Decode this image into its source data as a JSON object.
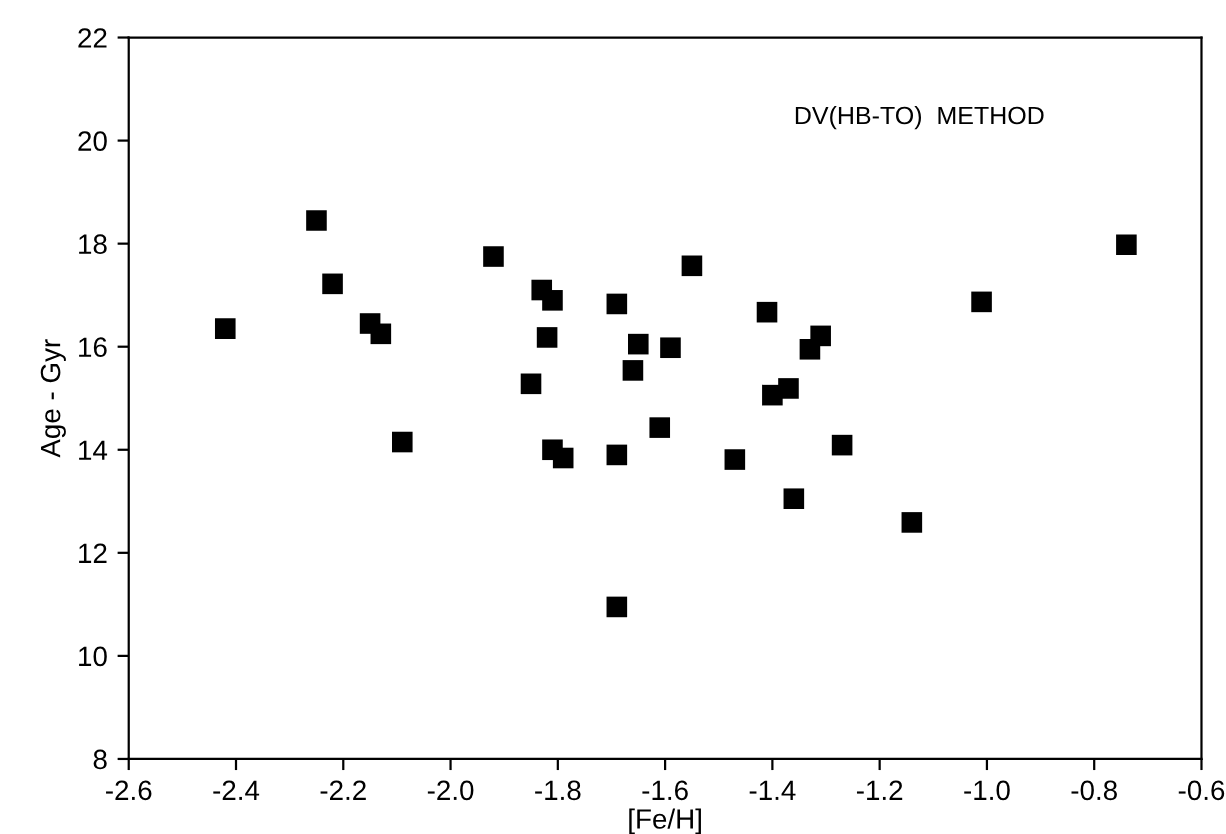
{
  "chart_data": {
    "type": "scatter",
    "xlabel": "[Fe/H]",
    "ylabel": "Age - Gyr",
    "annotations": [
      "DV(HB-TO)  METHOD"
    ],
    "x": [
      -2.42,
      -2.15,
      -2.13,
      -2.09,
      -1.85,
      -1.82,
      -1.81,
      -1.79,
      -1.69,
      -1.69,
      -1.66,
      -1.65,
      -1.59,
      -1.61,
      -1.47,
      -1.4,
      -1.37,
      -1.36,
      -1.33,
      -1.31,
      -1.27,
      -1.14,
      -2.25,
      -2.22,
      -1.92,
      -1.83,
      -1.81,
      -1.69,
      -1.55,
      -1.41,
      -1.01,
      -0.74
    ],
    "series": [
      {
        "color": "#000000",
        "values": [
          16.35,
          16.45,
          16.25,
          14.15,
          15.28,
          16.18,
          14.0,
          13.84,
          13.9,
          10.95,
          15.54,
          16.05,
          15.98,
          14.43,
          13.81,
          15.06,
          15.19,
          13.05,
          15.95,
          16.21,
          14.09,
          12.59,
          18.45,
          17.22,
          17.75,
          17.1,
          16.9,
          16.83,
          17.57,
          16.67,
          16.87,
          17.98
        ]
      }
    ],
    "marker": "square",
    "grid": false,
    "xlim": [
      -2.6,
      -0.6
    ],
    "ylim": [
      8,
      22
    ],
    "xticks": [
      -2.6,
      -2.4,
      -2.2,
      {
        "value": -2.0,
        "label": "-2.0"
      },
      -1.8,
      -1.6,
      -1.4,
      -1.2,
      {
        "value": -1.0,
        "label": "-1.0"
      },
      -0.8,
      -0.6
    ],
    "yticks": [
      8,
      10,
      12,
      14,
      16,
      18,
      20,
      22
    ]
  }
}
